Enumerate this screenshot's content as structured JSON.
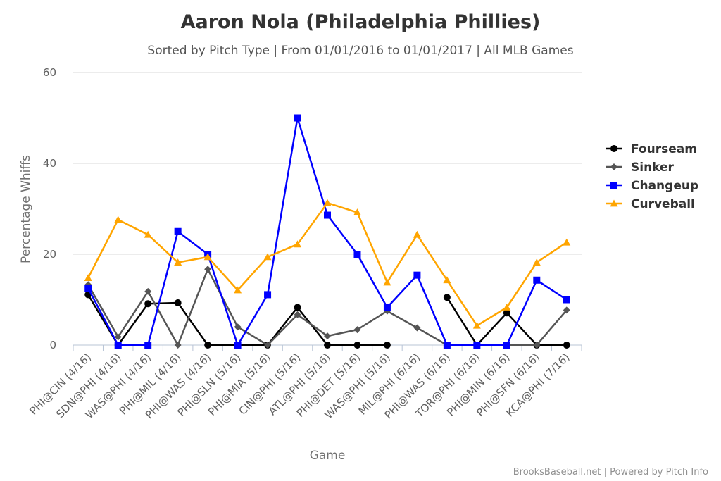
{
  "chart_data": {
    "type": "line",
    "title": "Aaron Nola (Philadelphia Phillies)",
    "subtitle": "Sorted by Pitch Type | From 01/01/2016 to 01/01/2017 | All MLB Games",
    "xlabel": "Game",
    "ylabel": "Percentage Whiffs",
    "ylim": [
      0,
      60
    ],
    "yticks": [
      0,
      20,
      40,
      60
    ],
    "grid": true,
    "legend_position": "right",
    "categories": [
      "PHI@CIN (4/16)",
      "SDN@PHI (4/16)",
      "WAS@PHI (4/16)",
      "PHI@MIL (4/16)",
      "PHI@WAS (4/16)",
      "PHI@SLN (5/16)",
      "PHI@MIA (5/16)",
      "CIN@PHI (5/16)",
      "ATL@PHI (5/16)",
      "PHI@DET (5/16)",
      "WAS@PHI (5/16)",
      "MIL@PHI (6/16)",
      "PHI@WAS (6/16)",
      "TOR@PHI (6/16)",
      "PHI@MIN (6/16)",
      "PHI@SFN (6/16)",
      "KCA@PHI (7/16)"
    ],
    "series": [
      {
        "name": "Fourseam",
        "color": "#000000",
        "marker": "circle",
        "values": [
          11.1,
          0,
          9.1,
          9.3,
          0,
          0,
          0,
          8.3,
          0,
          0,
          0,
          null,
          10.5,
          0,
          7.1,
          0,
          0
        ]
      },
      {
        "name": "Sinker",
        "color": "#555555",
        "marker": "diamond",
        "values": [
          13.3,
          1.8,
          11.8,
          0,
          16.7,
          4.0,
          0,
          6.7,
          2.0,
          3.4,
          7.5,
          3.8,
          0,
          0,
          0,
          0,
          7.7
        ]
      },
      {
        "name": "Changeup",
        "color": "#0000ff",
        "marker": "square",
        "values": [
          12.5,
          0,
          0,
          25.0,
          20.0,
          0,
          11.1,
          50.0,
          28.6,
          20.0,
          8.3,
          15.4,
          0,
          0,
          0,
          14.3,
          10.0
        ]
      },
      {
        "name": "Curveball",
        "color": "#ffa500",
        "marker": "triangle",
        "values": [
          14.8,
          27.6,
          24.3,
          18.2,
          19.4,
          12.1,
          19.4,
          22.2,
          31.3,
          29.2,
          13.8,
          24.3,
          14.3,
          4.3,
          8.3,
          18.2,
          22.6
        ]
      }
    ]
  },
  "credits": "BrooksBaseball.net | Powered by Pitch Info"
}
